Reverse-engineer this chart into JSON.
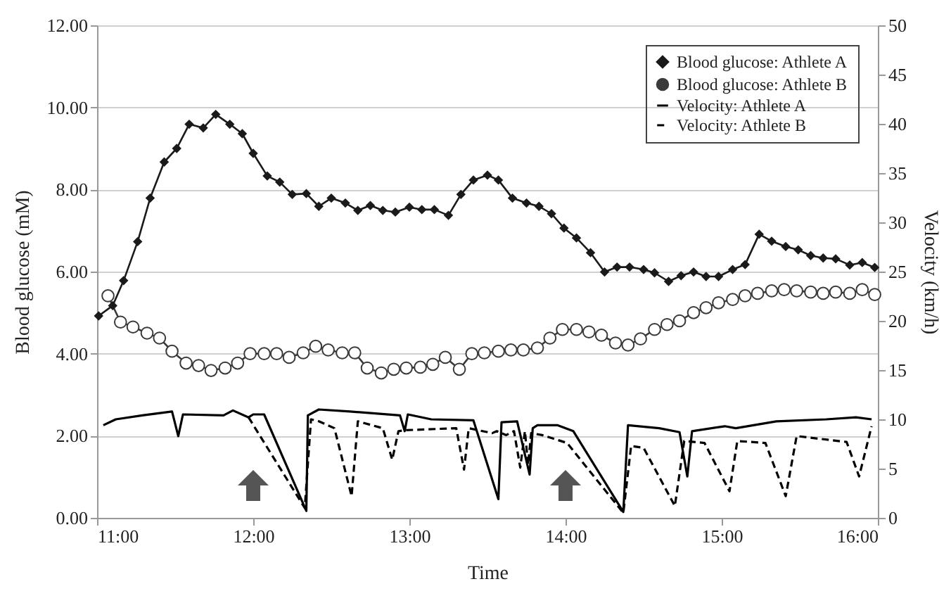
{
  "chart_data": {
    "type": "line",
    "xlabel": "Time",
    "ylabel": "Blood glucose (mM)",
    "y2label": "Velocity (km/h)",
    "xlim": [
      11,
      16
    ],
    "xticks": [
      {
        "value": 11,
        "label": "11:00"
      },
      {
        "value": 12,
        "label": "12:00"
      },
      {
        "value": 13,
        "label": "13:00"
      },
      {
        "value": 14,
        "label": "14:00"
      },
      {
        "value": 15,
        "label": "15:00"
      },
      {
        "value": 16,
        "label": "16:00"
      }
    ],
    "ylim": [
      0,
      12
    ],
    "yticks": [
      {
        "value": 0,
        "label": "0.00"
      },
      {
        "value": 2,
        "label": "2.00"
      },
      {
        "value": 4,
        "label": "4.00"
      },
      {
        "value": 6,
        "label": "6.00"
      },
      {
        "value": 8,
        "label": "8.00"
      },
      {
        "value": 10,
        "label": "10.00"
      },
      {
        "value": 12,
        "label": "12.00"
      }
    ],
    "y2lim": [
      0,
      50
    ],
    "y2ticks": [
      0,
      5,
      10,
      15,
      20,
      25,
      30,
      35,
      40,
      45,
      50
    ],
    "grid": "y",
    "legend": "top right",
    "series": [
      {
        "name": "Blood glucose: Athlete A",
        "color": "#1a1a1a",
        "marker": "diamond",
        "line_style": "solid",
        "x": [
          11.01,
          11.1,
          11.17,
          11.26,
          11.34,
          11.43,
          11.51,
          11.59,
          11.68,
          11.76,
          11.85,
          11.93,
          12.0,
          12.09,
          12.17,
          12.25,
          12.34,
          12.42,
          12.5,
          12.59,
          12.67,
          12.75,
          12.83,
          12.91,
          13.0,
          13.08,
          13.16,
          13.25,
          13.33,
          13.41,
          13.5,
          13.57,
          13.66,
          13.75,
          13.83,
          13.91,
          13.99,
          14.07,
          14.16,
          14.25,
          14.33,
          14.41,
          14.5,
          14.57,
          14.66,
          14.74,
          14.82,
          14.9,
          14.98,
          15.07,
          15.15,
          15.24,
          15.32,
          15.41,
          15.49,
          15.57,
          15.65,
          15.73,
          15.82,
          15.9,
          15.98
        ],
        "values": [
          4.92,
          5.17,
          5.78,
          6.73,
          7.79,
          8.67,
          9.0,
          9.59,
          9.5,
          9.83,
          9.59,
          9.36,
          8.88,
          8.33,
          8.18,
          7.88,
          7.9,
          7.59,
          7.79,
          7.67,
          7.49,
          7.61,
          7.49,
          7.45,
          7.57,
          7.51,
          7.51,
          7.37,
          7.88,
          8.23,
          8.35,
          8.23,
          7.79,
          7.67,
          7.59,
          7.41,
          7.06,
          6.82,
          6.46,
          5.99,
          6.11,
          6.11,
          6.05,
          5.97,
          5.76,
          5.9,
          5.99,
          5.88,
          5.88,
          6.05,
          6.17,
          6.91,
          6.74,
          6.61,
          6.53,
          6.39,
          6.33,
          6.31,
          6.16,
          6.22,
          6.1
        ]
      },
      {
        "name": "Blood glucose: Athlete B",
        "color": "#3a3a3a",
        "marker": "circle",
        "line_style": "solid",
        "x": [
          11.07,
          11.15,
          11.23,
          11.32,
          11.4,
          11.48,
          11.57,
          11.65,
          11.73,
          11.82,
          11.9,
          11.98,
          12.07,
          12.15,
          12.23,
          12.32,
          12.4,
          12.48,
          12.57,
          12.65,
          12.73,
          12.82,
          12.9,
          12.98,
          13.07,
          13.15,
          13.23,
          13.32,
          13.4,
          13.48,
          13.57,
          13.65,
          13.73,
          13.82,
          13.9,
          13.98,
          14.07,
          14.15,
          14.23,
          14.32,
          14.4,
          14.48,
          14.57,
          14.65,
          14.73,
          14.82,
          14.9,
          14.98,
          15.07,
          15.15,
          15.23,
          15.32,
          15.4,
          15.48,
          15.57,
          15.65,
          15.73,
          15.82,
          15.9,
          15.98
        ],
        "values": [
          5.41,
          4.77,
          4.65,
          4.5,
          4.38,
          4.06,
          3.77,
          3.71,
          3.59,
          3.65,
          3.77,
          4.0,
          4.0,
          4.0,
          3.91,
          4.02,
          4.18,
          4.09,
          4.02,
          4.02,
          3.65,
          3.53,
          3.62,
          3.65,
          3.67,
          3.74,
          3.91,
          3.62,
          4.0,
          4.02,
          4.06,
          4.09,
          4.09,
          4.14,
          4.38,
          4.59,
          4.59,
          4.53,
          4.45,
          4.26,
          4.21,
          4.36,
          4.59,
          4.71,
          4.8,
          5.0,
          5.12,
          5.24,
          5.32,
          5.41,
          5.47,
          5.53,
          5.56,
          5.53,
          5.5,
          5.47,
          5.5,
          5.47,
          5.56,
          5.44
        ]
      },
      {
        "name": "Velocity: Athlete A",
        "color": "#000000",
        "marker": "none",
        "line_style": "solid",
        "axis": "y2",
        "x": [
          11.04,
          11.12,
          11.29,
          11.48,
          11.52,
          11.55,
          11.81,
          11.87,
          11.97,
          12.0,
          12.07,
          12.34,
          12.35,
          12.42,
          12.62,
          12.94,
          12.97,
          12.99,
          13.14,
          13.41,
          13.57,
          13.59,
          13.69,
          13.77,
          13.79,
          13.82,
          13.95,
          14.05,
          14.37,
          14.4,
          14.6,
          14.73,
          14.78,
          14.81,
          15.02,
          15.09,
          15.35,
          15.67,
          15.86,
          15.96
        ],
        "values": [
          9.4,
          10.0,
          10.4,
          10.8,
          8.3,
          10.5,
          10.4,
          10.9,
          10.2,
          10.5,
          10.5,
          0.7,
          10.4,
          11.0,
          10.8,
          10.4,
          8.8,
          10.5,
          10.0,
          9.9,
          1.9,
          9.7,
          9.8,
          4.4,
          9.1,
          9.4,
          9.4,
          8.8,
          0.6,
          9.4,
          9.1,
          8.7,
          4.2,
          8.8,
          9.3,
          9.1,
          9.8,
          10.0,
          10.2,
          10.0
        ]
      },
      {
        "name": "Velocity: Athlete B",
        "color": "#000000",
        "marker": "none",
        "line_style": "dashed",
        "axis": "y2",
        "x": [
          11.97,
          12.33,
          12.37,
          12.42,
          12.52,
          12.63,
          12.67,
          12.83,
          12.89,
          12.93,
          12.98,
          13.3,
          13.35,
          13.38,
          13.53,
          13.56,
          13.62,
          13.67,
          13.71,
          13.74,
          13.76,
          13.78,
          13.85,
          14.01,
          14.37,
          14.42,
          14.5,
          14.7,
          14.76,
          14.89,
          15.05,
          15.1,
          15.28,
          15.41,
          15.48,
          15.8,
          15.88,
          15.96
        ],
        "values": [
          10.2,
          1.0,
          10.0,
          9.8,
          9.1,
          2.2,
          9.8,
          9.1,
          5.9,
          8.8,
          8.9,
          9.1,
          4.9,
          9.1,
          8.6,
          8.8,
          8.4,
          8.8,
          5.1,
          8.8,
          5.4,
          8.6,
          8.4,
          7.6,
          0.5,
          7.3,
          7.1,
          1.2,
          7.8,
          7.6,
          2.7,
          7.8,
          7.6,
          2.2,
          8.3,
          7.7,
          4.2,
          9.3
        ]
      }
    ]
  }
}
